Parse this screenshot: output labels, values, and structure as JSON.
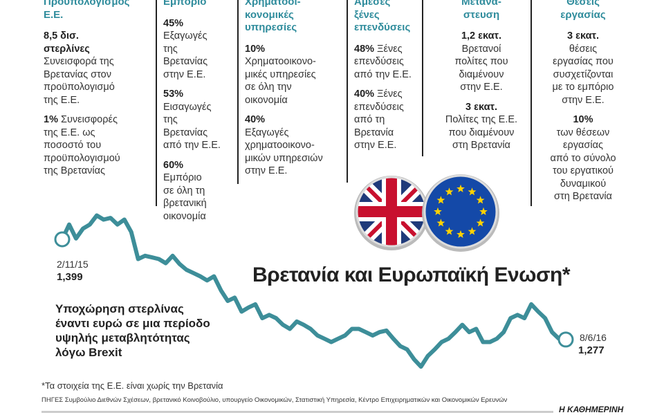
{
  "columns": [
    {
      "heading": "Προϋπολογισμός\nΕ.Ε.",
      "items": [
        {
          "lead": "8,5 δισ.\nστερλίνες",
          "text": "\nΣυνεισφορά της\nΒρετανίας στον\nπροϋπολογισμό\nτης Ε.Ε."
        },
        {
          "lead": "1%",
          "text": " Συνεισφορές\nτης Ε.Ε. ως\nποσοστό του\nπροϋπολογισμού\nτης Βρετανίας"
        }
      ]
    },
    {
      "heading": "Εμπόριο",
      "items": [
        {
          "lead": "45%",
          "text": "\nΕξαγωγές\nτης\nΒρετανίας\nστην Ε.Ε."
        },
        {
          "lead": "53%",
          "text": "\nΕισαγωγές\nτης\nΒρετανίας\nαπό την Ε.Ε."
        },
        {
          "lead": "60%",
          "text": "\nΕμπόριο\nσε όλη τη\nβρετανική\nοικονομία"
        }
      ]
    },
    {
      "heading": "Χρηματοοι-\nκονομικές\nυπηρεσίες",
      "items": [
        {
          "lead": "10%",
          "text": "\nΧρηματοοικονο-\nμικές υπηρεσίες\nσε όλη την\nοικονομία"
        },
        {
          "lead": "40%",
          "text": "\nΕξαγωγές\nχρηματοοικονο-\nμικών υπηρεσιών\nστην Ε.Ε."
        }
      ]
    },
    {
      "heading": "Αμεσες\nξένες\nεπενδύσεις",
      "items": [
        {
          "lead": "48%",
          "text": " Ξένες\nεπενδύσεις\nαπό την Ε.Ε."
        },
        {
          "lead": "40%",
          "text": " Ξένες\nεπενδύσεις\nαπό τη\nΒρετανία\nστην Ε.Ε."
        }
      ]
    },
    {
      "heading": "Μετανά-\nστευση",
      "items": [
        {
          "lead": "1,2 εκατ.",
          "text": "\nΒρετανοί\nπολίτες που\nδιαμένουν\nστην Ε.Ε."
        },
        {
          "lead": "3 εκατ.",
          "text": "\nΠολίτες της Ε.Ε.\nπου διαμένουν\nστη Βρετανία"
        }
      ]
    },
    {
      "heading": "Θέσεις\nεργασίας",
      "items": [
        {
          "lead": "3 εκατ.",
          "text": "\nθέσεις\nεργασίας που\nσυσχετίζονται\nμε το εμπόριο\nστην Ε.Ε."
        },
        {
          "lead": "10%",
          "text": "\nτων θέσεων\nεργασίας\nαπό το σύνολο\nτου εργατικού\nδυναμικού\nστη Βρετανία"
        }
      ]
    }
  ],
  "chart_data": {
    "type": "line",
    "title": "Βρετανία και Ευρωπαϊκή Ενωση*",
    "subtitle": "Υποχώρηση στερλίνας\nέναντι ευρώ σε μια περίοδο\nυψηλής μεταβλητότητας\nλόγω Brexit",
    "color": "#3d8e99",
    "values": [
      1.399,
      1.417,
      1.4,
      1.412,
      1.417,
      1.428,
      1.423,
      1.425,
      1.417,
      1.423,
      1.408,
      1.375,
      1.379,
      1.377,
      1.375,
      1.37,
      1.379,
      1.369,
      1.362,
      1.358,
      1.354,
      1.349,
      1.354,
      1.337,
      1.324,
      1.328,
      1.311,
      1.316,
      1.32,
      1.303,
      1.307,
      1.303,
      1.295,
      1.29,
      1.299,
      1.295,
      1.29,
      1.282,
      1.278,
      1.274,
      1.278,
      1.282,
      1.29,
      1.29,
      1.286,
      1.282,
      1.286,
      1.288,
      1.278,
      1.269,
      1.265,
      1.253,
      1.244,
      1.257,
      1.265,
      1.274,
      1.278,
      1.286,
      1.295,
      1.286,
      1.29,
      1.274,
      1.274,
      1.278,
      1.286,
      1.303,
      1.307,
      1.303,
      1.32,
      1.311,
      1.303,
      1.286,
      1.278,
      1.277
    ],
    "start_date": "2/11/15",
    "start_label": "1,399",
    "end_date": "8/6/16",
    "end_label": "1,277"
  },
  "footnote": "*Τα στοιχεία της Ε.Ε. είναι χωρίς την Βρετανία",
  "sources": "ΠΗΓΕΣ Συμβούλιο Διεθνών Σχέσεων, βρετανικό Κοινοβούλιο, υπουργείο Οικονομικών, Στατιστική Υπηρεσία, Κέντρο Επιχειρηματικών και Οικονομικών Ερευνών",
  "brand": "Η ΚΑΘΗΜΕΡΙΝΗ"
}
